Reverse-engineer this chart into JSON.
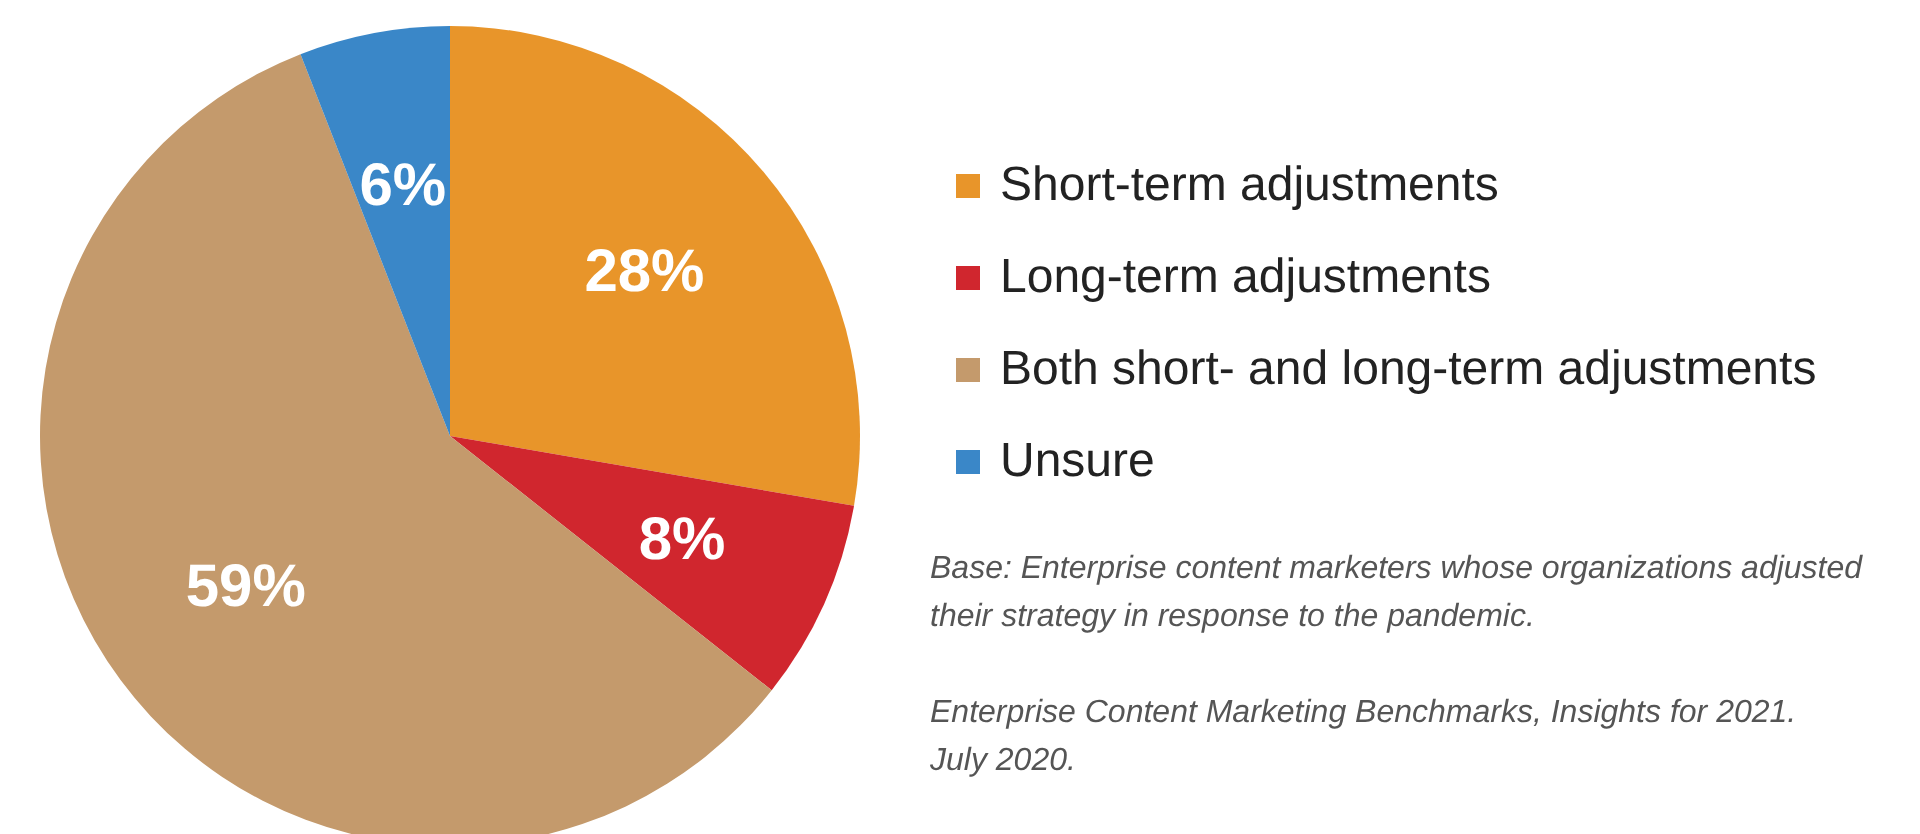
{
  "chart_data": {
    "type": "pie",
    "categories": [
      "Short-term adjustments",
      "Long-term adjustments",
      "Both short- and long-term adjustments",
      "Unsure"
    ],
    "values": [
      28,
      8,
      59,
      6
    ],
    "colors": [
      "#e8952a",
      "#d0262e",
      "#c49a6c",
      "#3a87c8"
    ],
    "value_labels": [
      "28%",
      "8%",
      "59%",
      "6%"
    ],
    "legend": "right",
    "annotations": [
      "Base: Enterprise content marketers whose organizations adjusted their strategy in response to the pandemic.",
      "Enterprise Content Marketing Benchmarks, Insights for 2021.",
      "July 2020."
    ]
  }
}
